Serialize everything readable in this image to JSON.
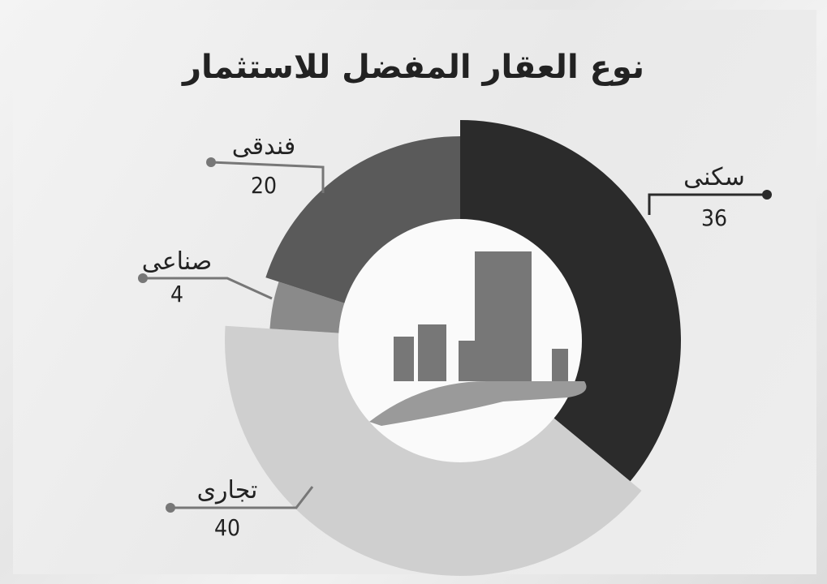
{
  "chart_data": {
    "type": "pie",
    "donut": true,
    "title": "نوع العقار المفضل للاستثمار",
    "slices": [
      {
        "label": "سكنى",
        "value": 36,
        "color": "#2b2b2b"
      },
      {
        "label": "تجارى",
        "value": 40,
        "color": "#cfcfcf"
      },
      {
        "label": "صناعى",
        "value": 4,
        "color": "#8a8a8a"
      },
      {
        "label": "فندقى",
        "value": 20,
        "color": "#5a5a5a"
      }
    ]
  }
}
